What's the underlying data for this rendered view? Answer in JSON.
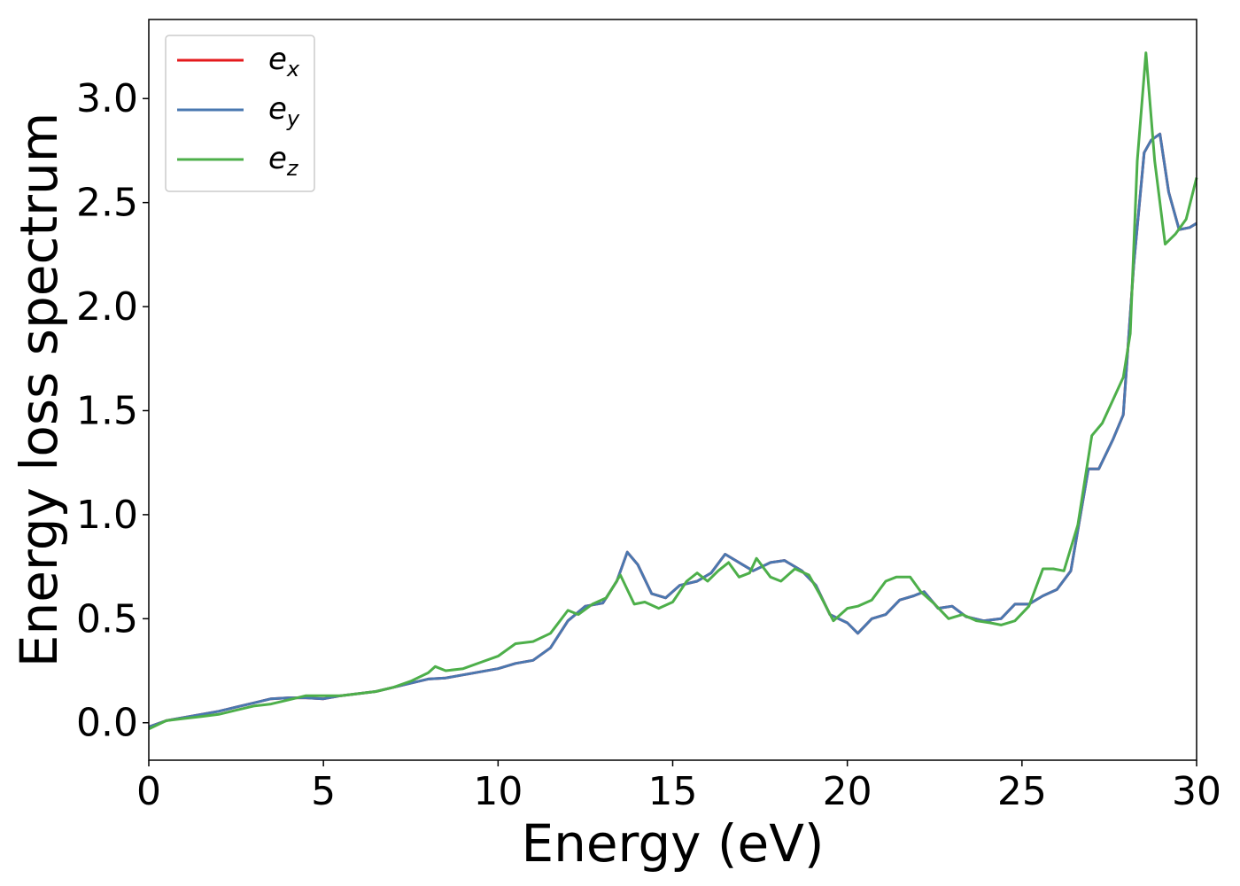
{
  "chart_data": {
    "type": "line",
    "title": "",
    "xlabel": "Energy (eV)",
    "ylabel": "Energy loss spectrum",
    "xlim": [
      0,
      30
    ],
    "ylim": [
      -0.18,
      3.38
    ],
    "xticks": [
      0,
      5,
      10,
      15,
      20,
      25,
      30
    ],
    "xtick_labels": [
      "0",
      "5",
      "10",
      "15",
      "20",
      "25",
      "30"
    ],
    "yticks": [
      0.0,
      0.5,
      1.0,
      1.5,
      2.0,
      2.5,
      3.0
    ],
    "ytick_labels": [
      "0.0",
      "0.5",
      "1.0",
      "1.5",
      "2.0",
      "2.5",
      "3.0"
    ],
    "grid": false,
    "legend_position": "top-left",
    "series": [
      {
        "name": "e_x",
        "label_base": "e",
        "label_sub": "x",
        "color": "#e41a1c",
        "points": [
          [
            0,
            -0.02
          ],
          [
            0.5,
            0.01
          ],
          [
            1,
            0.025
          ],
          [
            1.5,
            0.04
          ],
          [
            2,
            0.055
          ],
          [
            2.5,
            0.075
          ],
          [
            3,
            0.095
          ],
          [
            3.5,
            0.115
          ],
          [
            4,
            0.12
          ],
          [
            4.5,
            0.12
          ],
          [
            5,
            0.115
          ],
          [
            5.5,
            0.13
          ],
          [
            6,
            0.14
          ],
          [
            6.5,
            0.15
          ],
          [
            7,
            0.17
          ],
          [
            7.5,
            0.19
          ],
          [
            8,
            0.21
          ],
          [
            8.5,
            0.215
          ],
          [
            9,
            0.23
          ],
          [
            9.5,
            0.245
          ],
          [
            10,
            0.26
          ],
          [
            10.5,
            0.285
          ],
          [
            11,
            0.3
          ],
          [
            11.5,
            0.36
          ],
          [
            12,
            0.49
          ],
          [
            12.5,
            0.56
          ],
          [
            13,
            0.575
          ],
          [
            13.4,
            0.68
          ],
          [
            13.7,
            0.82
          ],
          [
            14,
            0.76
          ],
          [
            14.4,
            0.62
          ],
          [
            14.8,
            0.6
          ],
          [
            15.2,
            0.66
          ],
          [
            15.7,
            0.68
          ],
          [
            16.1,
            0.72
          ],
          [
            16.5,
            0.81
          ],
          [
            17,
            0.76
          ],
          [
            17.3,
            0.73
          ],
          [
            17.8,
            0.77
          ],
          [
            18.2,
            0.78
          ],
          [
            18.7,
            0.73
          ],
          [
            19.1,
            0.66
          ],
          [
            19.5,
            0.52
          ],
          [
            20,
            0.48
          ],
          [
            20.3,
            0.43
          ],
          [
            20.7,
            0.5
          ],
          [
            21.1,
            0.52
          ],
          [
            21.5,
            0.59
          ],
          [
            21.9,
            0.61
          ],
          [
            22.2,
            0.63
          ],
          [
            22.6,
            0.55
          ],
          [
            23,
            0.56
          ],
          [
            23.4,
            0.51
          ],
          [
            23.9,
            0.49
          ],
          [
            24.4,
            0.5
          ],
          [
            24.8,
            0.57
          ],
          [
            25.2,
            0.57
          ],
          [
            25.6,
            0.61
          ],
          [
            26,
            0.64
          ],
          [
            26.4,
            0.73
          ],
          [
            26.9,
            1.22
          ],
          [
            27.2,
            1.22
          ],
          [
            27.6,
            1.36
          ],
          [
            27.9,
            1.48
          ],
          [
            28.2,
            2.2
          ],
          [
            28.5,
            2.74
          ],
          [
            28.7,
            2.8
          ],
          [
            28.95,
            2.83
          ],
          [
            29.2,
            2.55
          ],
          [
            29.5,
            2.37
          ],
          [
            29.8,
            2.38
          ],
          [
            30,
            2.4
          ]
        ]
      },
      {
        "name": "e_y",
        "label_base": "e",
        "label_sub": "y",
        "color": "#4a78b0",
        "points": [
          [
            0,
            -0.02
          ],
          [
            0.5,
            0.01
          ],
          [
            1,
            0.025
          ],
          [
            1.5,
            0.04
          ],
          [
            2,
            0.055
          ],
          [
            2.5,
            0.075
          ],
          [
            3,
            0.095
          ],
          [
            3.5,
            0.115
          ],
          [
            4,
            0.12
          ],
          [
            4.5,
            0.12
          ],
          [
            5,
            0.115
          ],
          [
            5.5,
            0.13
          ],
          [
            6,
            0.14
          ],
          [
            6.5,
            0.15
          ],
          [
            7,
            0.17
          ],
          [
            7.5,
            0.19
          ],
          [
            8,
            0.21
          ],
          [
            8.5,
            0.215
          ],
          [
            9,
            0.23
          ],
          [
            9.5,
            0.245
          ],
          [
            10,
            0.26
          ],
          [
            10.5,
            0.285
          ],
          [
            11,
            0.3
          ],
          [
            11.5,
            0.36
          ],
          [
            12,
            0.49
          ],
          [
            12.5,
            0.56
          ],
          [
            13,
            0.575
          ],
          [
            13.4,
            0.68
          ],
          [
            13.7,
            0.82
          ],
          [
            14,
            0.76
          ],
          [
            14.4,
            0.62
          ],
          [
            14.8,
            0.6
          ],
          [
            15.2,
            0.66
          ],
          [
            15.7,
            0.68
          ],
          [
            16.1,
            0.72
          ],
          [
            16.5,
            0.81
          ],
          [
            17,
            0.76
          ],
          [
            17.3,
            0.73
          ],
          [
            17.8,
            0.77
          ],
          [
            18.2,
            0.78
          ],
          [
            18.7,
            0.73
          ],
          [
            19.1,
            0.66
          ],
          [
            19.5,
            0.52
          ],
          [
            20,
            0.48
          ],
          [
            20.3,
            0.43
          ],
          [
            20.7,
            0.5
          ],
          [
            21.1,
            0.52
          ],
          [
            21.5,
            0.59
          ],
          [
            21.9,
            0.61
          ],
          [
            22.2,
            0.63
          ],
          [
            22.6,
            0.55
          ],
          [
            23,
            0.56
          ],
          [
            23.4,
            0.51
          ],
          [
            23.9,
            0.49
          ],
          [
            24.4,
            0.5
          ],
          [
            24.8,
            0.57
          ],
          [
            25.2,
            0.57
          ],
          [
            25.6,
            0.61
          ],
          [
            26,
            0.64
          ],
          [
            26.4,
            0.73
          ],
          [
            26.9,
            1.22
          ],
          [
            27.2,
            1.22
          ],
          [
            27.6,
            1.36
          ],
          [
            27.9,
            1.48
          ],
          [
            28.2,
            2.2
          ],
          [
            28.5,
            2.74
          ],
          [
            28.7,
            2.8
          ],
          [
            28.95,
            2.83
          ],
          [
            29.2,
            2.55
          ],
          [
            29.5,
            2.37
          ],
          [
            29.8,
            2.38
          ],
          [
            30,
            2.4
          ]
        ]
      },
      {
        "name": "e_z",
        "label_base": "e",
        "label_sub": "z",
        "color": "#4daf4a",
        "points": [
          [
            0,
            -0.03
          ],
          [
            0.5,
            0.01
          ],
          [
            1,
            0.02
          ],
          [
            1.5,
            0.03
          ],
          [
            2,
            0.04
          ],
          [
            2.5,
            0.06
          ],
          [
            3,
            0.08
          ],
          [
            3.5,
            0.09
          ],
          [
            4,
            0.11
          ],
          [
            4.5,
            0.13
          ],
          [
            5,
            0.13
          ],
          [
            5.5,
            0.13
          ],
          [
            6,
            0.14
          ],
          [
            6.5,
            0.15
          ],
          [
            7,
            0.17
          ],
          [
            7.5,
            0.2
          ],
          [
            8,
            0.24
          ],
          [
            8.2,
            0.27
          ],
          [
            8.5,
            0.25
          ],
          [
            9,
            0.26
          ],
          [
            9.5,
            0.29
          ],
          [
            10,
            0.32
          ],
          [
            10.5,
            0.38
          ],
          [
            11,
            0.39
          ],
          [
            11.5,
            0.43
          ],
          [
            12,
            0.54
          ],
          [
            12.3,
            0.52
          ],
          [
            12.7,
            0.57
          ],
          [
            13.1,
            0.6
          ],
          [
            13.5,
            0.71
          ],
          [
            13.9,
            0.57
          ],
          [
            14.2,
            0.58
          ],
          [
            14.6,
            0.55
          ],
          [
            15,
            0.58
          ],
          [
            15.4,
            0.68
          ],
          [
            15.7,
            0.72
          ],
          [
            16,
            0.68
          ],
          [
            16.3,
            0.73
          ],
          [
            16.6,
            0.77
          ],
          [
            16.9,
            0.7
          ],
          [
            17.2,
            0.72
          ],
          [
            17.4,
            0.79
          ],
          [
            17.8,
            0.7
          ],
          [
            18.1,
            0.68
          ],
          [
            18.5,
            0.74
          ],
          [
            18.9,
            0.71
          ],
          [
            19.2,
            0.62
          ],
          [
            19.6,
            0.49
          ],
          [
            20,
            0.55
          ],
          [
            20.3,
            0.56
          ],
          [
            20.7,
            0.59
          ],
          [
            21.1,
            0.68
          ],
          [
            21.4,
            0.7
          ],
          [
            21.8,
            0.7
          ],
          [
            22.1,
            0.63
          ],
          [
            22.5,
            0.57
          ],
          [
            22.9,
            0.5
          ],
          [
            23.3,
            0.52
          ],
          [
            23.7,
            0.49
          ],
          [
            24.1,
            0.48
          ],
          [
            24.4,
            0.47
          ],
          [
            24.8,
            0.49
          ],
          [
            25.2,
            0.56
          ],
          [
            25.6,
            0.74
          ],
          [
            25.9,
            0.74
          ],
          [
            26.2,
            0.73
          ],
          [
            26.6,
            0.95
          ],
          [
            27,
            1.38
          ],
          [
            27.3,
            1.44
          ],
          [
            27.6,
            1.55
          ],
          [
            27.9,
            1.66
          ],
          [
            28.1,
            1.87
          ],
          [
            28.3,
            2.7
          ],
          [
            28.55,
            3.22
          ],
          [
            28.8,
            2.7
          ],
          [
            29.1,
            2.3
          ],
          [
            29.4,
            2.35
          ],
          [
            29.7,
            2.42
          ],
          [
            30,
            2.62
          ]
        ]
      }
    ]
  }
}
